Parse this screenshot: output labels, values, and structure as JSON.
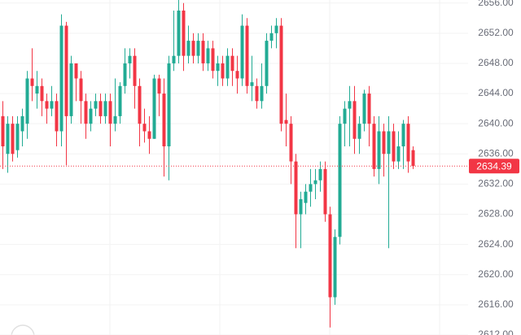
{
  "chart_data": {
    "type": "candlestick",
    "open": [
      2641,
      2636,
      2640,
      2636.5,
      2639,
      2640,
      2646,
      2644,
      2645,
      2643,
      2642,
      2643,
      2639,
      2653,
      2641,
      2648,
      2646,
      2643,
      2640,
      2642,
      2643,
      2641,
      2643,
      2640,
      2641,
      2645,
      2648,
      2649,
      2645,
      2640,
      2639,
      2638,
      2646,
      2644,
      2637,
      2648,
      2649,
      2655,
      2649,
      2651,
      2649,
      2651,
      2648,
      2650,
      2647,
      2648,
      2646,
      2649,
      2647,
      2646,
      2653,
      2645,
      2645,
      2643,
      2645,
      2651,
      2652,
      2653,
      2640.5,
      2640,
      2635,
      2628,
      2629.5,
      2631,
      2632,
      2632.5,
      2634,
      2628,
      2617,
      2625,
      2640,
      2642,
      2643,
      2638,
      2640,
      2644,
      2640,
      2634,
      2639,
      2636,
      2639,
      2635,
      2637,
      2640,
      2636.5
    ],
    "high": [
      2643,
      2641,
      2641,
      2641,
      2642,
      2647,
      2650,
      2647,
      2646,
      2644,
      2645,
      2644,
      2654.5,
      2653.5,
      2649,
      2648,
      2647,
      2644,
      2643,
      2644,
      2644,
      2644,
      2644,
      2646,
      2645.5,
      2650,
      2650,
      2650,
      2646,
      2642,
      2641,
      2646.5,
      2646.5,
      2646,
      2649,
      2655,
      2657,
      2656,
      2653,
      2652,
      2652,
      2652,
      2651,
      2651,
      2649,
      2649,
      2650,
      2650,
      2649,
      2654.5,
      2654,
      2649,
      2646,
      2648,
      2652,
      2653,
      2654,
      2654,
      2644,
      2641,
      2636,
      2631,
      2632,
      2634,
      2634,
      2635,
      2635,
      2629,
      2626,
      2641,
      2643,
      2645,
      2645,
      2641,
      2644.5,
      2645,
      2641,
      2641,
      2640,
      2641,
      2640,
      2639,
      2640.5,
      2641,
      2637
    ],
    "low": [
      2634,
      2633.5,
      2635,
      2635.5,
      2637,
      2638,
      2643,
      2642,
      2641,
      2640,
      2641,
      2637,
      2637,
      2634.5,
      2640,
      2643,
      2640,
      2638,
      2639,
      2641,
      2640,
      2640,
      2637,
      2639,
      2640,
      2644,
      2646,
      2642,
      2637,
      2637.5,
      2636,
      2638,
      2641,
      2633,
      2632.5,
      2647,
      2648,
      2647,
      2648,
      2648,
      2648,
      2647,
      2647,
      2646,
      2645,
      2645,
      2645,
      2645,
      2644,
      2645,
      2644,
      2643,
      2642,
      2642,
      2644,
      2650,
      2650,
      2639,
      2637,
      2632,
      2623.5,
      2623.5,
      2628,
      2629,
      2630,
      2631,
      2627,
      2613,
      2616,
      2624,
      2637,
      2637,
      2636,
      2636,
      2639,
      2637,
      2633,
      2632,
      2633,
      2623.5,
      2634,
      2634,
      2634,
      2633.5,
      2634
    ],
    "close": [
      2637,
      2640,
      2636,
      2640,
      2641,
      2646,
      2645,
      2645,
      2643,
      2642,
      2643,
      2639,
      2653,
      2641,
      2648,
      2646,
      2643,
      2640,
      2642,
      2643,
      2641,
      2643,
      2640,
      2641,
      2645,
      2648,
      2649,
      2645,
      2640,
      2639,
      2638,
      2646,
      2644,
      2637,
      2648,
      2649,
      2655,
      2649,
      2651,
      2649,
      2651,
      2648,
      2650,
      2647,
      2648,
      2646,
      2649,
      2647,
      2646,
      2653,
      2645,
      2645.5,
      2643,
      2645,
      2651,
      2652,
      2653,
      2640,
      2640,
      2635,
      2628,
      2630,
      2631,
      2632,
      2632.5,
      2634,
      2628,
      2617,
      2625,
      2640,
      2642,
      2643,
      2638,
      2640,
      2644,
      2640,
      2634,
      2639,
      2636,
      2639,
      2635,
      2637,
      2640,
      2635,
      2634.39
    ],
    "up_color": "#22ab94",
    "down_color": "#f23645",
    "last_price": 2634.39,
    "ylim": [
      2612,
      2656.4
    ],
    "yticks": [
      {
        "value": 2656,
        "label": "2656.00"
      },
      {
        "value": 2652,
        "label": "2652.00"
      },
      {
        "value": 2648,
        "label": "2648.00"
      },
      {
        "value": 2644,
        "label": "2644.00"
      },
      {
        "value": 2640,
        "label": "2640.00"
      },
      {
        "value": 2636,
        "label": "2636.00"
      },
      {
        "value": 2632,
        "label": "2632.00"
      },
      {
        "value": 2628,
        "label": "2628.00"
      },
      {
        "value": 2624,
        "label": "2624.00"
      },
      {
        "value": 2620,
        "label": "2620.00"
      },
      {
        "value": 2616,
        "label": "2616.00"
      },
      {
        "value": 2612,
        "label": "2612.00"
      }
    ],
    "grid": true
  }
}
